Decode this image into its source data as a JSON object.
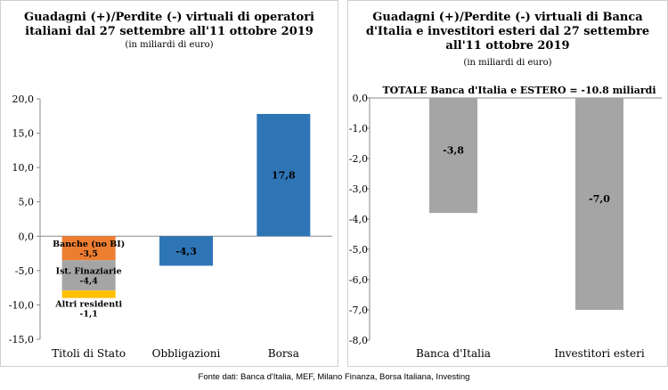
{
  "source": "Fonte dati: Banca d'Italia, MEF, Milano Finanza, Borsa Italiana, Investing",
  "chart_data": [
    {
      "type": "bar",
      "stacked": true,
      "title_lines": [
        "Guadagni (+)/Perdite (-) virtuali di operatori",
        "italiani dal 27 settembre all'11 ottobre 2019"
      ],
      "subtitle": "(in miliardi di euro)",
      "categories": [
        "Titoli di Stato",
        "Obbligazioni",
        "Borsa"
      ],
      "ylim": [
        -15,
        20
      ],
      "yticks": [
        "-15,0",
        "-10,0",
        "-5,0",
        "0,0",
        "5,0",
        "10,0",
        "15,0",
        "20,0"
      ],
      "ytick_values": [
        -15,
        -10,
        -5,
        0,
        5,
        10,
        15,
        20
      ],
      "grid": false,
      "segments": [
        {
          "category": 0,
          "name": "Banche (no BI)",
          "value": -3.5,
          "label": "-3,5",
          "color": "#ED7D31",
          "label_inside": true
        },
        {
          "category": 0,
          "name": "Ist. Finaziarie",
          "value": -4.4,
          "label": "-4,4",
          "color": "#A5A5A5",
          "label_inside": true
        },
        {
          "category": 0,
          "name": "Altri residenti",
          "value": -1.1,
          "label": "-1,1",
          "color": "#FFC000",
          "label_inside": false
        },
        {
          "category": 1,
          "name": "",
          "value": -4.3,
          "label": "-4,3",
          "color": "#2E75B6",
          "label_inside": true
        },
        {
          "category": 2,
          "name": "",
          "value": 17.8,
          "label": "17,8",
          "color": "#2E75B6",
          "label_inside": true
        }
      ]
    },
    {
      "type": "bar",
      "title_lines": [
        "Guadagni (+)/Perdite (-) virtuali di Banca",
        "d'Italia e investitori esteri dal 27 settembre",
        "all'11 ottobre 2019"
      ],
      "subtitle": "(in miliardi di euro)",
      "annotation": "TOTALE Banca d'Italia e ESTERO = -10.8 miliardi",
      "categories": [
        "Banca d'Italia",
        "Investitori esteri"
      ],
      "values": [
        -3.8,
        -7.0
      ],
      "labels": [
        "-3,8",
        "-7,0"
      ],
      "colors": [
        "#A5A5A5",
        "#A5A5A5"
      ],
      "ylim": [
        -8,
        0
      ],
      "yticks": [
        "-8,0",
        "-7,0",
        "-6,0",
        "-5,0",
        "-4,0",
        "-3,0",
        "-2,0",
        "-1,0",
        "0,0"
      ],
      "ytick_values": [
        -8,
        -7,
        -6,
        -5,
        -4,
        -3,
        -2,
        -1,
        0
      ],
      "grid": false
    }
  ]
}
